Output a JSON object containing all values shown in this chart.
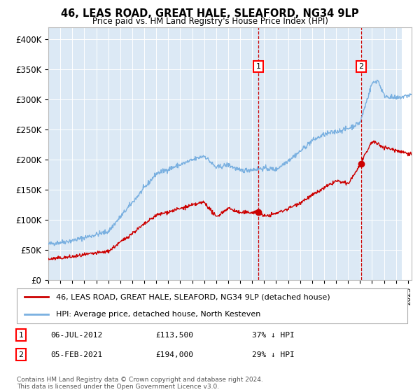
{
  "title": "46, LEAS ROAD, GREAT HALE, SLEAFORD, NG34 9LP",
  "subtitle": "Price paid vs. HM Land Registry's House Price Index (HPI)",
  "ylabel_ticks": [
    "£0",
    "£50K",
    "£100K",
    "£150K",
    "£200K",
    "£250K",
    "£300K",
    "£350K",
    "£400K"
  ],
  "ytick_values": [
    0,
    50000,
    100000,
    150000,
    200000,
    250000,
    300000,
    350000,
    400000
  ],
  "ylim": [
    0,
    420000
  ],
  "xlim_start": 1995.0,
  "xlim_end": 2025.3,
  "plot_bg": "#dce9f5",
  "hpi_color": "#7ab0e0",
  "price_color": "#cc0000",
  "sale1_date": 2012.52,
  "sale1_price": 113500,
  "sale2_date": 2021.08,
  "sale2_price": 194000,
  "legend_label1": "46, LEAS ROAD, GREAT HALE, SLEAFORD, NG34 9LP (detached house)",
  "legend_label2": "HPI: Average price, detached house, North Kesteven",
  "annotation1_date": "06-JUL-2012",
  "annotation1_price": "£113,500",
  "annotation1_hpi": "37% ↓ HPI",
  "annotation2_date": "05-FEB-2021",
  "annotation2_price": "£194,000",
  "annotation2_hpi": "29% ↓ HPI",
  "footer": "Contains HM Land Registry data © Crown copyright and database right 2024.\nThis data is licensed under the Open Government Licence v3.0.",
  "hatch_area_start": 2024.5
}
